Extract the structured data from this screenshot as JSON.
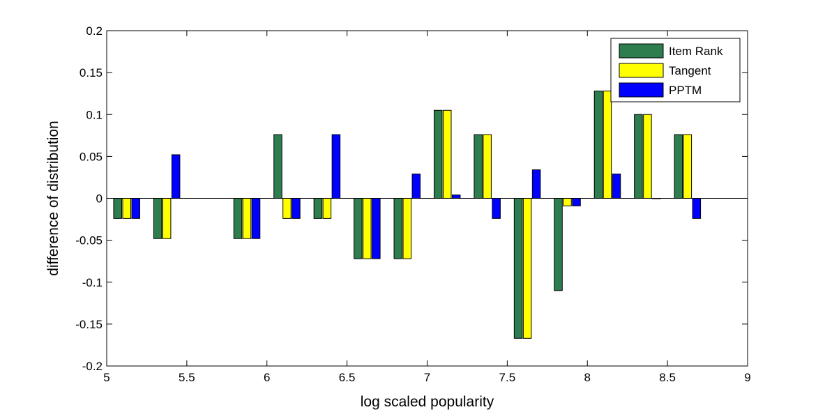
{
  "chart_data": {
    "type": "bar",
    "title": "",
    "xlabel": "log scaled popularity",
    "ylabel": "difference of distribution",
    "xlim": [
      5,
      9
    ],
    "ylim": [
      -0.2,
      0.2
    ],
    "xticks": [
      "5",
      "5.5",
      "6",
      "6.5",
      "7",
      "7.5",
      "8",
      "8.5",
      "9"
    ],
    "yticks": [
      "0.2",
      "0.15",
      "0.1",
      "0.05",
      "0",
      "-0.05",
      "-0.1",
      "-0.15",
      "-0.2"
    ],
    "grid": false,
    "legend_position": "top-right",
    "x": [
      5.125,
      5.375,
      5.875,
      6.125,
      6.375,
      6.625,
      6.875,
      7.125,
      7.375,
      7.625,
      7.875,
      8.125,
      8.375,
      8.625
    ],
    "series": [
      {
        "name": "Item Rank",
        "color": "#2e7d4f",
        "values": [
          -0.024,
          -0.048,
          -0.048,
          0.076,
          -0.024,
          -0.072,
          -0.072,
          0.105,
          0.076,
          -0.167,
          -0.11,
          0.128,
          0.1,
          0.076
        ]
      },
      {
        "name": "Tangent",
        "color": "#ffff00",
        "values": [
          -0.024,
          -0.048,
          -0.048,
          -0.024,
          -0.024,
          -0.072,
          -0.072,
          0.105,
          0.076,
          -0.167,
          -0.009,
          0.128,
          0.1,
          0.076
        ]
      },
      {
        "name": "PPTM",
        "color": "#0000ff",
        "values": [
          -0.024,
          0.052,
          -0.048,
          -0.024,
          0.076,
          -0.072,
          0.029,
          0.004,
          -0.024,
          0.034,
          -0.009,
          0.029,
          0,
          -0.024
        ]
      }
    ]
  }
}
